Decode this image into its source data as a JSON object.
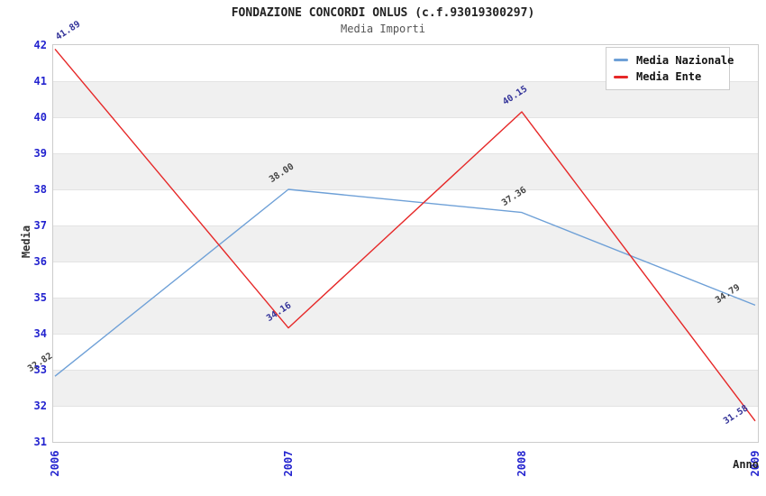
{
  "chart_data": {
    "type": "line",
    "title": "FONDAZIONE CONCORDI ONLUS (c.f.93019300297)",
    "subtitle": "Media Importi",
    "xlabel": "Anno",
    "ylabel": "Media",
    "categories": [
      "2006",
      "2007",
      "2008",
      "2009"
    ],
    "series": [
      {
        "name": "Media Nazionale",
        "values": [
          32.82,
          38.0,
          37.36,
          34.79
        ],
        "point_labels": [
          "32.82",
          "38.00",
          "37.36",
          "34.79"
        ],
        "color": "#6EA0D7",
        "point_label_color": "#444444"
      },
      {
        "name": "Media Ente",
        "values": [
          41.89,
          34.16,
          40.15,
          31.58
        ],
        "point_labels": [
          "41.89",
          "34.16",
          "40.15",
          "31.58"
        ],
        "color": "#E62828",
        "point_label_color": "#333399"
      }
    ],
    "ylim": [
      31,
      42
    ],
    "y_ticks": [
      "42",
      "41",
      "40",
      "39",
      "38",
      "37",
      "36",
      "35",
      "34",
      "33",
      "32",
      "31"
    ],
    "grid": true,
    "legend_position": "top-right"
  },
  "colors": {
    "tick_label": "#2323cf",
    "band_gray": "#f0f0f0",
    "band_white": "#ffffff",
    "gridline": "#e3e3e3",
    "plot_border": "#cccccc",
    "title_text": "#222222",
    "subtitle_text": "#555555"
  }
}
